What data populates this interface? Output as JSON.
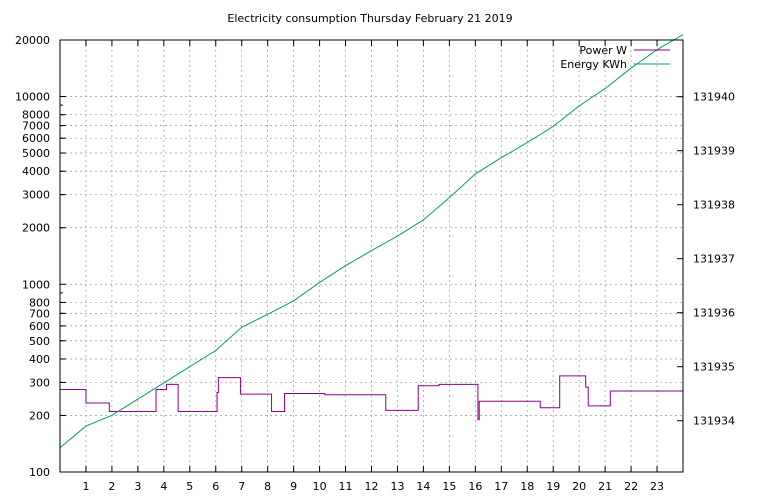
{
  "chart_data": {
    "type": "line",
    "title": "Electricity consumption Thursday February 21 2019",
    "xlabel": "",
    "ylabel": "",
    "x_ticks": [
      "1",
      "2",
      "3",
      "4",
      "5",
      "6",
      "7",
      "8",
      "9",
      "10",
      "11",
      "12",
      "13",
      "14",
      "15",
      "16",
      "17",
      "18",
      "19",
      "20",
      "21",
      "22",
      "23"
    ],
    "xlim": [
      0,
      24
    ],
    "y_left": {
      "scale": "log",
      "ylim": [
        100,
        20000
      ],
      "ticks": [
        "100",
        "200",
        "300",
        "400",
        "500",
        "600",
        "700",
        "800",
        "1000",
        "2000",
        "3000",
        "4000",
        "5000",
        "6000",
        "7000",
        "8000",
        "10000",
        "20000"
      ]
    },
    "y_right": {
      "ylim": [
        131933.05,
        131941.05
      ],
      "ticks": [
        "131934",
        "131935",
        "131936",
        "131937",
        "131938",
        "131939",
        "131940"
      ]
    },
    "grid": true,
    "legend_position": "top-right",
    "series": [
      {
        "name": "Power W",
        "axis": "left",
        "color": "#8b008b",
        "step": true,
        "points": [
          [
            0,
            275
          ],
          [
            1.0,
            275
          ],
          [
            1.0,
            233
          ],
          [
            1.9,
            233
          ],
          [
            1.9,
            210
          ],
          [
            3.7,
            210
          ],
          [
            3.7,
            275
          ],
          [
            4.1,
            275
          ],
          [
            4.1,
            293
          ],
          [
            4.55,
            293
          ],
          [
            4.55,
            210
          ],
          [
            6.05,
            210
          ],
          [
            6.05,
            265
          ],
          [
            6.1,
            265
          ],
          [
            6.1,
            318
          ],
          [
            6.95,
            318
          ],
          [
            6.95,
            260
          ],
          [
            8.15,
            260
          ],
          [
            8.15,
            210
          ],
          [
            8.65,
            210
          ],
          [
            8.65,
            262
          ],
          [
            10.2,
            262
          ],
          [
            10.2,
            258
          ],
          [
            12.55,
            258
          ],
          [
            12.55,
            213
          ],
          [
            13.8,
            213
          ],
          [
            13.8,
            288
          ],
          [
            14.6,
            288
          ],
          [
            14.6,
            293
          ],
          [
            16.1,
            293
          ],
          [
            16.1,
            190
          ],
          [
            16.15,
            190
          ],
          [
            16.15,
            238
          ],
          [
            18.5,
            238
          ],
          [
            18.5,
            220
          ],
          [
            19.25,
            220
          ],
          [
            19.25,
            325
          ],
          [
            20.25,
            325
          ],
          [
            20.25,
            283
          ],
          [
            20.35,
            283
          ],
          [
            20.35,
            225
          ],
          [
            21.2,
            225
          ],
          [
            21.2,
            270
          ],
          [
            24,
            270
          ]
        ]
      },
      {
        "name": "Energy KWh",
        "axis": "right",
        "color": "#009e73",
        "step": false,
        "points": [
          [
            0,
            131933.5
          ],
          [
            1.0,
            131933.9
          ],
          [
            2.0,
            131934.1
          ],
          [
            3.0,
            131934.4
          ],
          [
            4.0,
            131934.7
          ],
          [
            5.0,
            131935.0
          ],
          [
            6.0,
            131935.3
          ],
          [
            7.0,
            131935.73
          ],
          [
            8.0,
            131935.97
          ],
          [
            9.0,
            131936.22
          ],
          [
            10.0,
            131936.56
          ],
          [
            11.0,
            131936.87
          ],
          [
            12.0,
            131937.15
          ],
          [
            13.0,
            131937.42
          ],
          [
            14.0,
            131937.72
          ],
          [
            15.0,
            131938.13
          ],
          [
            16.0,
            131938.57
          ],
          [
            17.0,
            131938.87
          ],
          [
            18.0,
            131939.15
          ],
          [
            19.0,
            131939.45
          ],
          [
            20.0,
            131939.83
          ],
          [
            21.0,
            131940.15
          ],
          [
            22.0,
            131940.53
          ],
          [
            23.0,
            131940.87
          ],
          [
            24.0,
            131941.15
          ]
        ]
      }
    ]
  }
}
